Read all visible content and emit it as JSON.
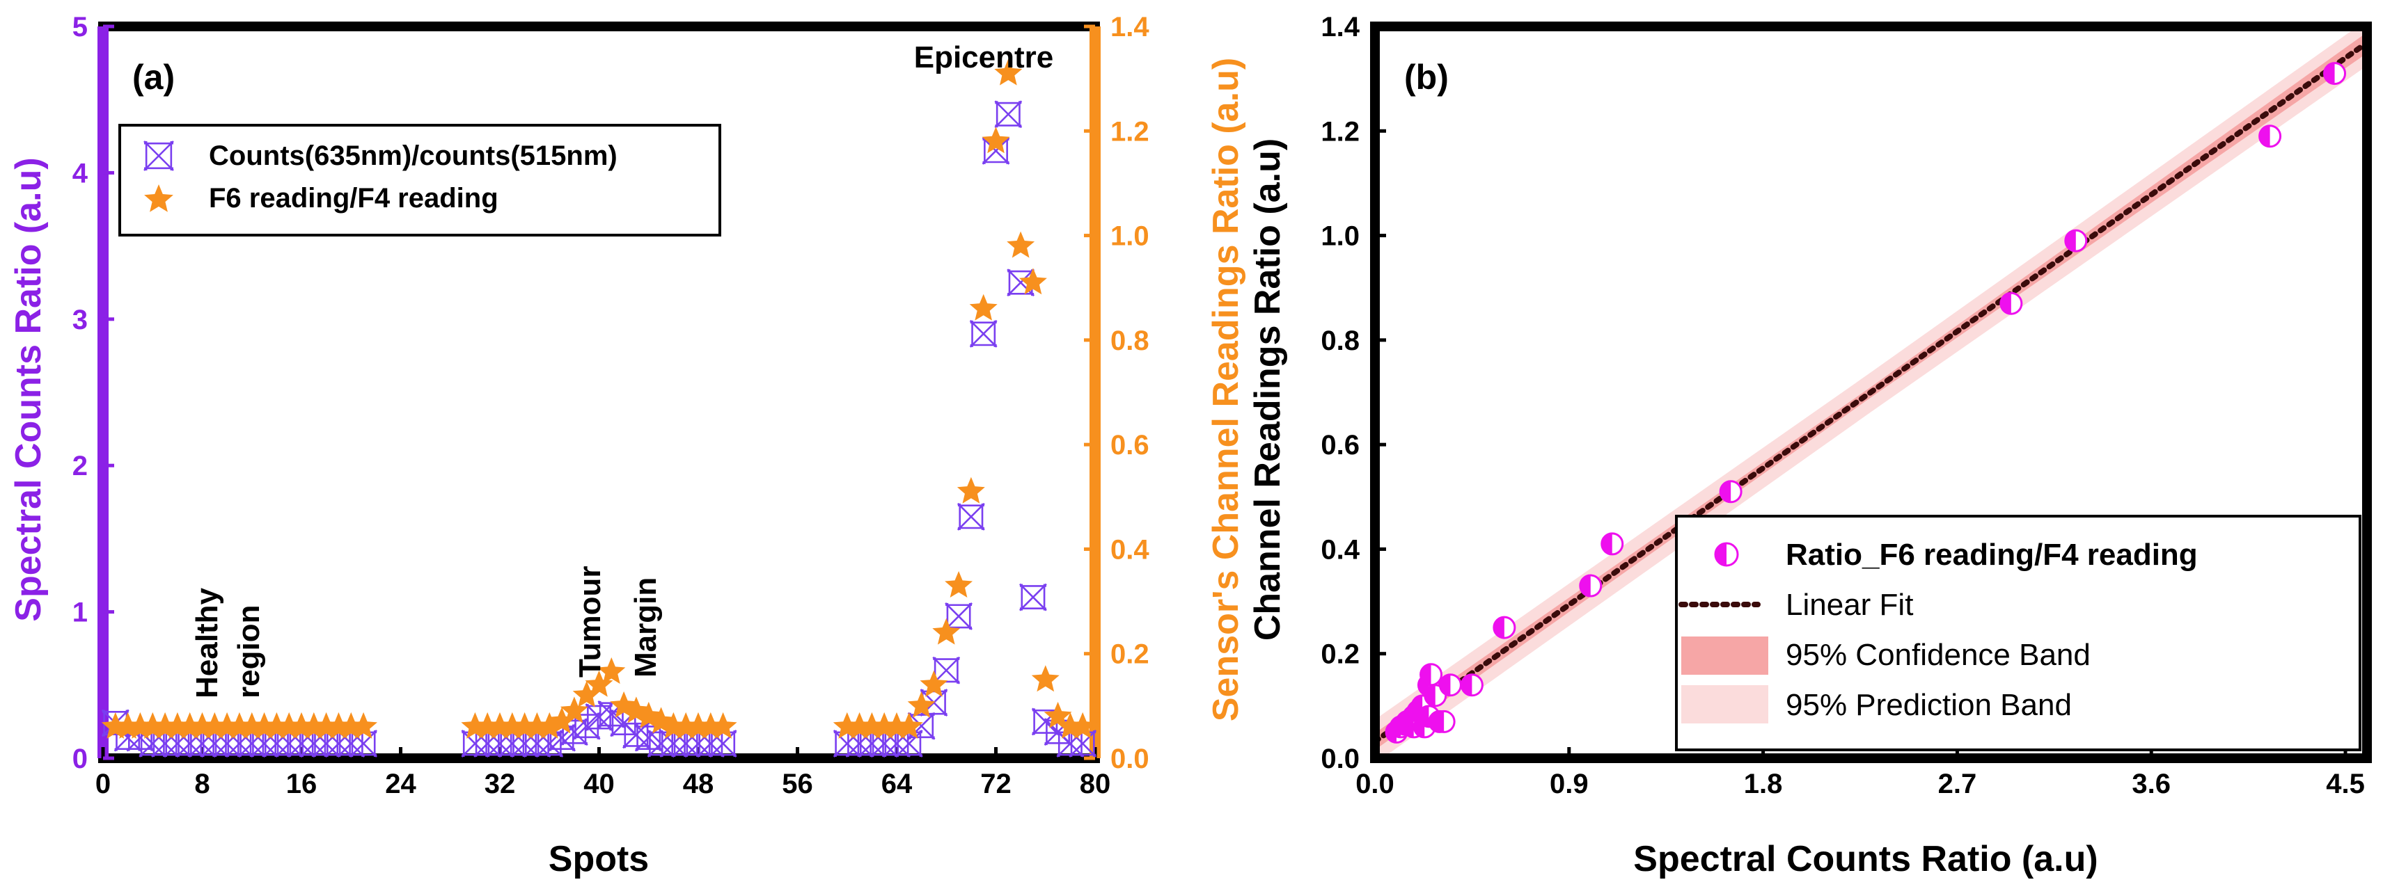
{
  "colors": {
    "left_axis": "#8b21e6",
    "right_axis": "#f7901e",
    "counts_marker": "#7a3ff0",
    "readings_marker": "#f7901e",
    "scatter_point": "#ee10ee",
    "fit_line": "#5a1010",
    "confidence_band": "#f6a6a6",
    "prediction_band": "#fbdcdc",
    "frame": "#000000"
  },
  "chart_data": [
    {
      "type": "scatter",
      "panel_label": "(a)",
      "xlabel": "Spots",
      "ylabel_left": "Spectral Counts Ratio (a.u)",
      "ylabel_right": "Sensor's Channel Readings Ratio (a.u)",
      "xlim": [
        0,
        80
      ],
      "ylim_left": [
        0,
        5
      ],
      "ylim_right": [
        0,
        1.4
      ],
      "x_ticks": [
        0,
        8,
        16,
        24,
        32,
        40,
        48,
        56,
        64,
        72,
        80
      ],
      "y_ticks_left": [
        0,
        1,
        2,
        3,
        4,
        5
      ],
      "y_ticks_right": [
        "0.0",
        "0.2",
        "0.4",
        "0.6",
        "0.8",
        "1.0",
        "1.2",
        "1.4"
      ],
      "legend": [
        {
          "label": "Counts(635nm)/counts(515nm)",
          "marker": "crossed-x-icon"
        },
        {
          "label": "F6 reading/F4 reading",
          "marker": "star-icon"
        }
      ],
      "annotations": [
        "Healthy",
        "region",
        "Tumour",
        "Margin",
        "Epicentre"
      ],
      "series": [
        {
          "name": "Counts(635nm)/counts(515nm)",
          "axis": "left",
          "points": [
            [
              1,
              0.24
            ],
            [
              2,
              0.14
            ],
            [
              3,
              0.14
            ],
            [
              4,
              0.1
            ],
            [
              5,
              0.1
            ],
            [
              6,
              0.1
            ],
            [
              7,
              0.1
            ],
            [
              8,
              0.1
            ],
            [
              9,
              0.1
            ],
            [
              10,
              0.1
            ],
            [
              11,
              0.1
            ],
            [
              12,
              0.1
            ],
            [
              13,
              0.1
            ],
            [
              14,
              0.1
            ],
            [
              15,
              0.1
            ],
            [
              16,
              0.1
            ],
            [
              17,
              0.1
            ],
            [
              18,
              0.1
            ],
            [
              19,
              0.1
            ],
            [
              20,
              0.1
            ],
            [
              21,
              0.1
            ],
            [
              30,
              0.1
            ],
            [
              31,
              0.1
            ],
            [
              32,
              0.1
            ],
            [
              33,
              0.1
            ],
            [
              34,
              0.1
            ],
            [
              35,
              0.1
            ],
            [
              36,
              0.1
            ],
            [
              37,
              0.14
            ],
            [
              38,
              0.18
            ],
            [
              39,
              0.22
            ],
            [
              40,
              0.28
            ],
            [
              41,
              0.3
            ],
            [
              42,
              0.24
            ],
            [
              43,
              0.16
            ],
            [
              44,
              0.14
            ],
            [
              45,
              0.1
            ],
            [
              46,
              0.1
            ],
            [
              47,
              0.1
            ],
            [
              48,
              0.1
            ],
            [
              49,
              0.1
            ],
            [
              50,
              0.1
            ],
            [
              60,
              0.1
            ],
            [
              61,
              0.1
            ],
            [
              62,
              0.1
            ],
            [
              63,
              0.1
            ],
            [
              64,
              0.1
            ],
            [
              65,
              0.1
            ],
            [
              66,
              0.22
            ],
            [
              67,
              0.38
            ],
            [
              68,
              0.6
            ],
            [
              69,
              0.97
            ],
            [
              70,
              1.65
            ],
            [
              71,
              2.9
            ],
            [
              72,
              4.15
            ],
            [
              73,
              4.4
            ],
            [
              74,
              3.25
            ],
            [
              75,
              1.1
            ],
            [
              76,
              0.25
            ],
            [
              77,
              0.18
            ],
            [
              78,
              0.1
            ],
            [
              79,
              0.1
            ]
          ]
        },
        {
          "name": "F6 reading/F4 reading",
          "axis": "right",
          "points": [
            [
              1,
              0.06
            ],
            [
              2,
              0.06
            ],
            [
              3,
              0.06
            ],
            [
              4,
              0.06
            ],
            [
              5,
              0.06
            ],
            [
              6,
              0.06
            ],
            [
              7,
              0.06
            ],
            [
              8,
              0.06
            ],
            [
              9,
              0.06
            ],
            [
              10,
              0.06
            ],
            [
              11,
              0.06
            ],
            [
              12,
              0.06
            ],
            [
              13,
              0.06
            ],
            [
              14,
              0.06
            ],
            [
              15,
              0.06
            ],
            [
              16,
              0.06
            ],
            [
              17,
              0.06
            ],
            [
              18,
              0.06
            ],
            [
              19,
              0.06
            ],
            [
              20,
              0.06
            ],
            [
              21,
              0.06
            ],
            [
              30,
              0.06
            ],
            [
              31,
              0.06
            ],
            [
              32,
              0.06
            ],
            [
              33,
              0.06
            ],
            [
              34,
              0.06
            ],
            [
              35,
              0.06
            ],
            [
              36,
              0.06
            ],
            [
              37,
              0.07
            ],
            [
              38,
              0.09
            ],
            [
              39,
              0.12
            ],
            [
              40,
              0.14
            ],
            [
              41,
              0.165
            ],
            [
              42,
              0.1
            ],
            [
              43,
              0.09
            ],
            [
              44,
              0.08
            ],
            [
              45,
              0.07
            ],
            [
              46,
              0.06
            ],
            [
              47,
              0.06
            ],
            [
              48,
              0.06
            ],
            [
              49,
              0.06
            ],
            [
              50,
              0.06
            ],
            [
              60,
              0.06
            ],
            [
              61,
              0.06
            ],
            [
              62,
              0.06
            ],
            [
              63,
              0.06
            ],
            [
              64,
              0.06
            ],
            [
              65,
              0.06
            ],
            [
              66,
              0.1
            ],
            [
              67,
              0.14
            ],
            [
              68,
              0.24
            ],
            [
              69,
              0.33
            ],
            [
              70,
              0.51
            ],
            [
              71,
              0.86
            ],
            [
              72,
              1.18
            ],
            [
              73,
              1.31
            ],
            [
              74,
              0.98
            ],
            [
              75,
              0.91
            ],
            [
              76,
              0.15
            ],
            [
              77,
              0.08
            ],
            [
              78,
              0.06
            ],
            [
              79,
              0.06
            ]
          ]
        }
      ]
    },
    {
      "type": "scatter",
      "panel_label": "(b)",
      "xlabel": "Spectral Counts Ratio (a.u)",
      "ylabel": "Channel Readings Ratio (a.u)",
      "xlim": [
        0,
        4.6
      ],
      "ylim": [
        0,
        1.4
      ],
      "x_ticks": [
        "0.0",
        "0.9",
        "1.8",
        "2.7",
        "3.6",
        "4.5"
      ],
      "y_ticks": [
        "0.0",
        "0.2",
        "0.4",
        "0.6",
        "0.8",
        "1.0",
        "1.2",
        "1.4"
      ],
      "fit": {
        "slope": 0.2906,
        "intercept": 0.032,
        "x_range": [
          0,
          4.6
        ]
      },
      "legend": [
        {
          "label": "Ratio_F6 reading/F4 reading",
          "marker": "half-circle-icon"
        },
        {
          "label": "Linear Fit",
          "marker": "dotted-line-icon"
        },
        {
          "label": "95% Confidence Band",
          "marker": "swatch-icon"
        },
        {
          "label": "95% Prediction Band",
          "marker": "swatch-icon"
        }
      ],
      "points": [
        [
          0.1,
          0.05
        ],
        [
          0.12,
          0.06
        ],
        [
          0.14,
          0.065
        ],
        [
          0.15,
          0.07
        ],
        [
          0.18,
          0.06
        ],
        [
          0.18,
          0.08
        ],
        [
          0.2,
          0.09
        ],
        [
          0.22,
          0.1
        ],
        [
          0.23,
          0.06
        ],
        [
          0.25,
          0.08
        ],
        [
          0.25,
          0.14
        ],
        [
          0.26,
          0.16
        ],
        [
          0.28,
          0.12
        ],
        [
          0.3,
          0.07
        ],
        [
          0.32,
          0.07
        ],
        [
          0.35,
          0.14
        ],
        [
          0.45,
          0.14
        ],
        [
          0.6,
          0.25
        ],
        [
          1.0,
          0.33
        ],
        [
          1.1,
          0.41
        ],
        [
          1.65,
          0.51
        ],
        [
          2.95,
          0.87
        ],
        [
          3.25,
          0.99
        ],
        [
          4.15,
          1.19
        ],
        [
          4.45,
          1.31
        ]
      ]
    }
  ]
}
